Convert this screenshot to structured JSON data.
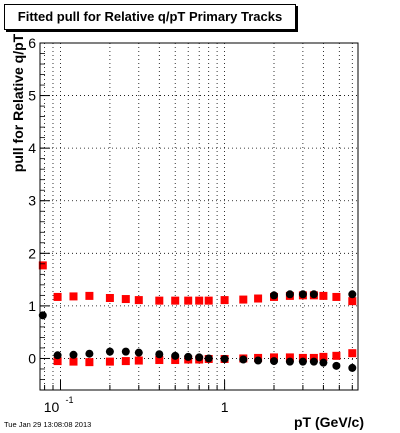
{
  "title": "Fitted pull for Relative q/pT  Primary Tracks",
  "footer": {
    "timestamp": "Tue Jan 29 13:08:08 2013"
  },
  "chart_data": {
    "type": "scatter",
    "title": "Fitted pull for Relative q/pT  Primary Tracks",
    "xlabel": "pT (GeV/c)",
    "ylabel": "pull for Relative q/pT",
    "x_scale": "log",
    "xlim": [
      0.075,
      6.5
    ],
    "ylim": [
      -0.6,
      6
    ],
    "x_tick_labels": [
      {
        "value": 0.1,
        "base": "10",
        "exponent": "-1"
      },
      {
        "value": 1,
        "base": "1",
        "exponent": ""
      }
    ],
    "y_ticks": [
      0,
      1,
      2,
      3,
      4,
      5,
      6
    ],
    "grid": true,
    "series": [
      {
        "color": "#ff0000",
        "marker": "square",
        "points": [
          [
            0.078,
            1.77
          ],
          [
            0.096,
            1.17
          ],
          [
            0.12,
            1.18
          ],
          [
            0.15,
            1.19
          ],
          [
            0.2,
            1.15
          ],
          [
            0.25,
            1.13
          ],
          [
            0.3,
            1.11
          ],
          [
            0.4,
            1.1
          ],
          [
            0.5,
            1.1
          ],
          [
            0.6,
            1.1
          ],
          [
            0.7,
            1.1
          ],
          [
            0.8,
            1.1
          ],
          [
            1.0,
            1.11
          ],
          [
            1.3,
            1.12
          ],
          [
            1.6,
            1.14
          ],
          [
            2.0,
            1.17
          ],
          [
            2.5,
            1.19
          ],
          [
            3.0,
            1.2
          ],
          [
            3.5,
            1.2
          ],
          [
            4.0,
            1.19
          ],
          [
            4.8,
            1.17
          ],
          [
            6.0,
            1.09
          ],
          [
            0.096,
            -0.05
          ],
          [
            0.12,
            -0.06
          ],
          [
            0.15,
            -0.07
          ],
          [
            0.2,
            -0.06
          ],
          [
            0.25,
            -0.05
          ],
          [
            0.3,
            -0.04
          ],
          [
            0.4,
            -0.03
          ],
          [
            0.5,
            -0.03
          ],
          [
            0.6,
            -0.02
          ],
          [
            0.7,
            -0.02
          ],
          [
            0.8,
            -0.01
          ],
          [
            1.0,
            -0.01
          ],
          [
            1.3,
            0.0
          ],
          [
            1.6,
            0.01
          ],
          [
            2.0,
            0.02
          ],
          [
            2.5,
            0.02
          ],
          [
            3.0,
            0.01
          ],
          [
            3.5,
            0.01
          ],
          [
            4.0,
            0.03
          ],
          [
            4.8,
            0.05
          ],
          [
            6.0,
            0.1
          ]
        ]
      },
      {
        "color": "#000000",
        "marker": "circle",
        "points": [
          [
            0.078,
            0.82
          ],
          [
            0.096,
            0.06
          ],
          [
            0.12,
            0.07
          ],
          [
            0.15,
            0.09
          ],
          [
            0.2,
            0.13
          ],
          [
            0.25,
            0.13
          ],
          [
            0.3,
            0.11
          ],
          [
            0.4,
            0.08
          ],
          [
            0.5,
            0.05
          ],
          [
            0.6,
            0.03
          ],
          [
            0.7,
            0.02
          ],
          [
            0.8,
            0.0
          ],
          [
            1.0,
            -0.01
          ],
          [
            1.3,
            -0.02
          ],
          [
            1.6,
            -0.04
          ],
          [
            2.0,
            -0.05
          ],
          [
            2.5,
            -0.06
          ],
          [
            3.0,
            -0.06
          ],
          [
            3.5,
            -0.06
          ],
          [
            4.0,
            -0.08
          ],
          [
            4.8,
            -0.14
          ],
          [
            6.0,
            -0.18
          ],
          [
            2.0,
            1.2
          ],
          [
            2.5,
            1.22
          ],
          [
            3.0,
            1.22
          ],
          [
            3.5,
            1.22
          ],
          [
            6.0,
            1.22
          ]
        ]
      }
    ]
  }
}
